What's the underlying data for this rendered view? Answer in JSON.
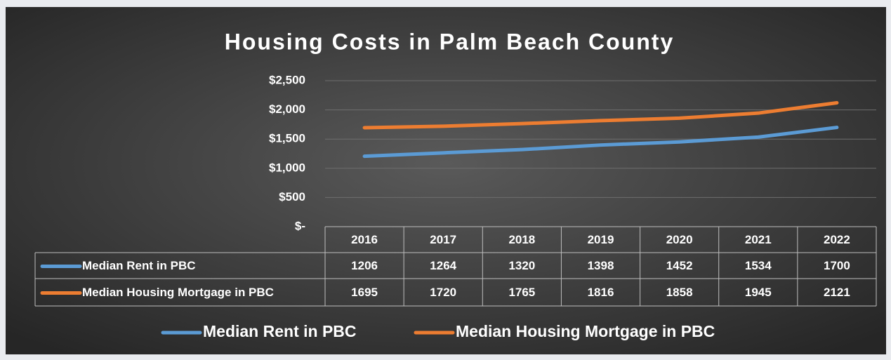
{
  "chart_data": {
    "type": "line",
    "title": "Housing Costs in Palm Beach County",
    "categories": [
      "2016",
      "2017",
      "2018",
      "2019",
      "2020",
      "2021",
      "2022"
    ],
    "series": [
      {
        "name": "Median Rent in PBC",
        "color": "#5b9bd5",
        "values": [
          1206,
          1264,
          1320,
          1398,
          1452,
          1534,
          1700
        ]
      },
      {
        "name": "Median Housing Mortgage in PBC",
        "color": "#ed7d31",
        "values": [
          1695,
          1720,
          1765,
          1816,
          1858,
          1945,
          2121
        ]
      }
    ],
    "ylim": [
      0,
      2500
    ],
    "yticks": [
      {
        "value": 0,
        "label": "$-"
      },
      {
        "value": 500,
        "label": "$500"
      },
      {
        "value": 1000,
        "label": "$1,000"
      },
      {
        "value": 1500,
        "label": "$1,500"
      },
      {
        "value": 2000,
        "label": "$2,000"
      },
      {
        "value": 2500,
        "label": "$2,500"
      }
    ],
    "grid": true,
    "legend": "bottom",
    "data_table": true
  }
}
